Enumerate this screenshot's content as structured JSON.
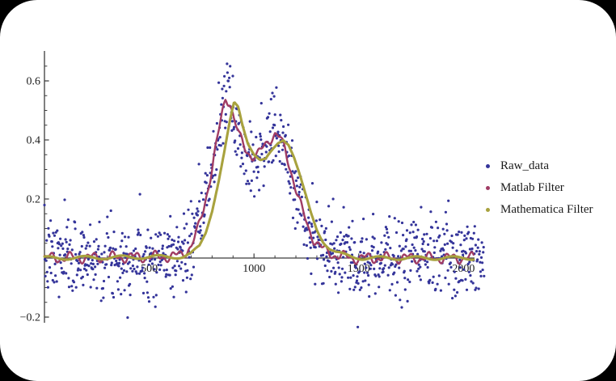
{
  "page": {
    "background": "#000000",
    "card_background": "#ffffff",
    "axis_color": "#3c3c3c",
    "tick_label_color": "#1c1c1c"
  },
  "chart_data": {
    "type": "scatter",
    "title": "",
    "xlabel": "",
    "ylabel": "",
    "x_range": [
      0,
      2100
    ],
    "y_range": [
      -0.25,
      0.7
    ],
    "x_tick_values": [
      500,
      1000,
      1500,
      2000
    ],
    "x_tick_labels": [
      "500",
      "1000",
      "1500",
      "2000"
    ],
    "x_minor_step": 100,
    "y_tick_values": [
      -0.2,
      0.2,
      0.4,
      0.6
    ],
    "y_tick_labels": [
      "−0.2",
      "0.2",
      "0.4",
      "0.6"
    ],
    "y_minor_step": 0.05,
    "grid": false,
    "legend_position": "right-of-plot",
    "series": [
      {
        "name": "Raw_data",
        "kind": "scatter",
        "color": "#34349a",
        "marker": "point",
        "n_points": 1000,
        "x_step": 2.1,
        "noise_sigma": 0.065,
        "seed": 7,
        "description": "underlying signal plus gaussian noise"
      },
      {
        "name": "Matlab Filter",
        "kind": "line",
        "color": "#a03c64",
        "stroke_width": 2.4,
        "ripple_amp": 0.013,
        "lag": 0,
        "amplitude_scale": 1.0,
        "description": "filtered signal with small residual ripple"
      },
      {
        "name": "Mathematica Filter",
        "kind": "line",
        "color": "#a8a23e",
        "stroke_width": 3.1,
        "ripple_amp": 0.006,
        "lag": 40,
        "amplitude_scale": 0.96,
        "description": "smoother filtered signal, lagging ~40 x-units"
      }
    ],
    "signal_points": [
      [
        0,
        0
      ],
      [
        620,
        0.005
      ],
      [
        660,
        0.015
      ],
      [
        700,
        0.04
      ],
      [
        730,
        0.09
      ],
      [
        760,
        0.17
      ],
      [
        790,
        0.27
      ],
      [
        820,
        0.38
      ],
      [
        845,
        0.48
      ],
      [
        865,
        0.545
      ],
      [
        885,
        0.53
      ],
      [
        905,
        0.47
      ],
      [
        930,
        0.41
      ],
      [
        960,
        0.37
      ],
      [
        990,
        0.345
      ],
      [
        1015,
        0.345
      ],
      [
        1045,
        0.375
      ],
      [
        1075,
        0.405
      ],
      [
        1100,
        0.42
      ],
      [
        1125,
        0.405
      ],
      [
        1150,
        0.36
      ],
      [
        1175,
        0.3
      ],
      [
        1200,
        0.235
      ],
      [
        1230,
        0.16
      ],
      [
        1260,
        0.1
      ],
      [
        1290,
        0.06
      ],
      [
        1320,
        0.035
      ],
      [
        1350,
        0.02
      ],
      [
        1390,
        0.01
      ],
      [
        1430,
        0.004
      ],
      [
        1480,
        0
      ],
      [
        2100,
        0
      ]
    ]
  }
}
